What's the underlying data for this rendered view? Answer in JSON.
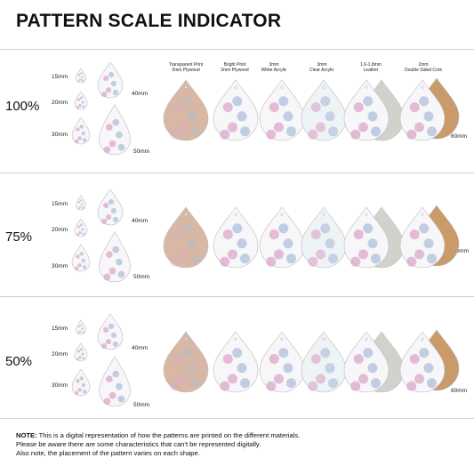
{
  "title": "PATTERN SCALE INDICATOR",
  "materials": [
    "Transparent Print\n3mm Plywood",
    "Bright Print\n3mm Plywood",
    "3mm\nWhite Acrylic",
    "3mm\nClear Acrylic",
    "1.6-1.8mm\nLeather",
    "2mm\nDouble Sided Cork"
  ],
  "scales": [
    {
      "percent": "100%",
      "sizes": {
        "s15": "15mm",
        "s20": "20mm",
        "s30": "30mm",
        "s40": "40mm",
        "s50": "50mm",
        "s60": "60mm"
      }
    },
    {
      "percent": "75%",
      "sizes": {
        "s15": "15mm",
        "s20": "20mm",
        "s30": "30mm",
        "s40": "40mm",
        "s50": "50mm",
        "s60": "60mm"
      }
    },
    {
      "percent": "50%",
      "sizes": {
        "s15": "15mm",
        "s20": "20mm",
        "s30": "30mm",
        "s40": "40mm",
        "s50": "50mm",
        "s60": "60mm"
      }
    }
  ],
  "note": {
    "label": "NOTE:",
    "line1": " This is a digital representation of how the patterns are printed on the different materials.",
    "line2": "Please be aware there are some characteristics that can't be represented digitally.",
    "line3": "Also note, the placement of the pattern varies on each shape."
  },
  "colors": {
    "plywood": "#d8b8a4",
    "white": "#f7f6f8",
    "leather_back": "#d2d2cc",
    "cork": "#c99a6a",
    "flower_pink": "#d9a3c8",
    "flower_blue": "#a9bcd8"
  }
}
